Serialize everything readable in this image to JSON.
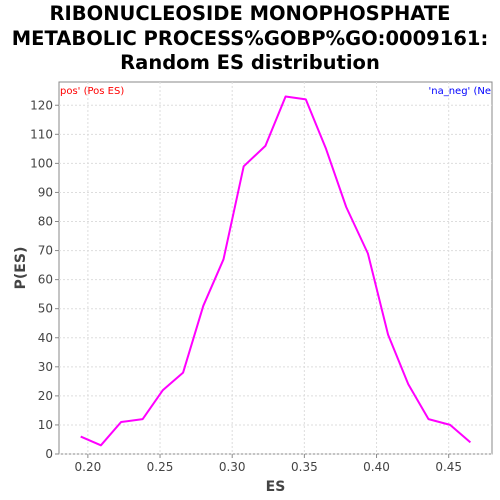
{
  "chart_data": {
    "type": "line",
    "title_lines": [
      "RIBONUCLEOSIDE MONOPHOSPHATE",
      "METABOLIC PROCESS%GOBP%GO:0009161:",
      "Random ES distribution"
    ],
    "xlabel": "ES",
    "ylabel": "P(ES)",
    "xlim": [
      0.18,
      0.48
    ],
    "ylim": [
      0,
      128
    ],
    "xticks": [
      {
        "value": 0.2,
        "label": "0.20"
      },
      {
        "value": 0.25,
        "label": "0.25"
      },
      {
        "value": 0.3,
        "label": "0.30"
      },
      {
        "value": 0.35,
        "label": "0.35"
      },
      {
        "value": 0.4,
        "label": "0.40"
      },
      {
        "value": 0.45,
        "label": "0.45"
      }
    ],
    "yticks": [
      {
        "value": 0,
        "label": "0"
      },
      {
        "value": 10,
        "label": "10"
      },
      {
        "value": 20,
        "label": "20"
      },
      {
        "value": 30,
        "label": "30"
      },
      {
        "value": 40,
        "label": "40"
      },
      {
        "value": 50,
        "label": "50"
      },
      {
        "value": 60,
        "label": "60"
      },
      {
        "value": 70,
        "label": "70"
      },
      {
        "value": 80,
        "label": "80"
      },
      {
        "value": 90,
        "label": "90"
      },
      {
        "value": 100,
        "label": "100"
      },
      {
        "value": 110,
        "label": "110"
      },
      {
        "value": 120,
        "label": "120"
      }
    ],
    "grid": true,
    "legend": [
      {
        "text": "pos' (Pos ES)",
        "color": "#ff0000",
        "placement": "top-left"
      },
      {
        "text": "'na_neg' (Ne",
        "color": "#0000ff",
        "placement": "top-right"
      }
    ],
    "series": [
      {
        "color": "#ff00ff",
        "x": [
          0.195,
          0.209,
          0.223,
          0.238,
          0.252,
          0.266,
          0.28,
          0.294,
          0.308,
          0.323,
          0.337,
          0.351,
          0.365,
          0.379,
          0.394,
          0.408,
          0.422,
          0.436,
          0.451,
          0.465
        ],
        "y": [
          6,
          3,
          11,
          12,
          22,
          28,
          51,
          67,
          99,
          106,
          123,
          122,
          105,
          85,
          69,
          41,
          24,
          12,
          10,
          4
        ]
      }
    ]
  }
}
